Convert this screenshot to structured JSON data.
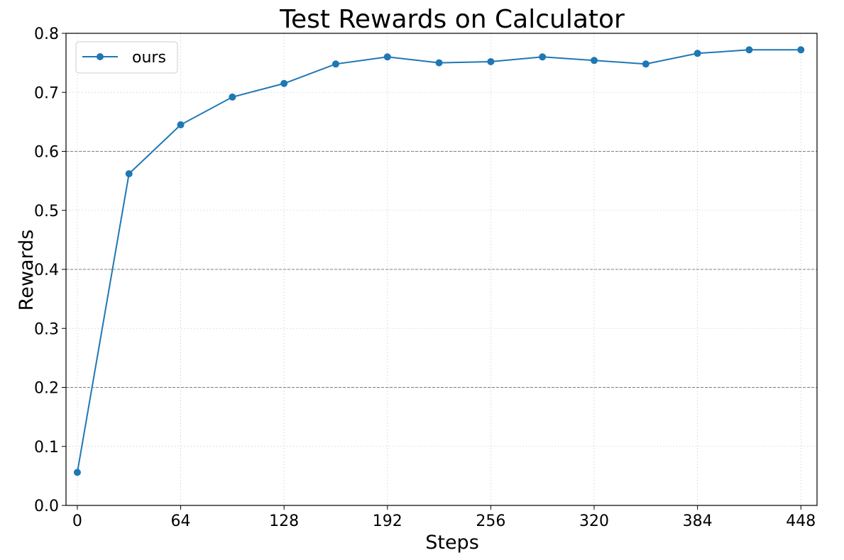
{
  "chart_data": {
    "type": "line",
    "title": "Test Rewards on Calculator",
    "xlabel": "Steps",
    "ylabel": "Rewards",
    "xlim": [
      -7,
      458
    ],
    "ylim": [
      0.0,
      0.8
    ],
    "xticks": [
      0,
      64,
      128,
      192,
      256,
      320,
      384,
      448
    ],
    "xtick_labels": [
      "0",
      "64",
      "128",
      "192",
      "256",
      "320",
      "384",
      "448"
    ],
    "yticks": [
      0.0,
      0.1,
      0.2,
      0.3,
      0.4,
      0.5,
      0.6,
      0.7,
      0.8
    ],
    "ytick_labels": [
      "0.0",
      "0.1",
      "0.2",
      "0.3",
      "0.4",
      "0.5",
      "0.6",
      "0.7",
      "0.8"
    ],
    "dashed_reference_lines": [
      0.2,
      0.4,
      0.6
    ],
    "grid": true,
    "legend_position": "top-left",
    "series": [
      {
        "name": "ours",
        "color": "#1f77b4",
        "marker": "circle",
        "x": [
          0,
          32,
          64,
          96,
          128,
          160,
          192,
          224,
          256,
          288,
          320,
          352,
          384,
          416,
          448
        ],
        "y": [
          0.056,
          0.562,
          0.645,
          0.692,
          0.715,
          0.748,
          0.76,
          0.75,
          0.752,
          0.76,
          0.754,
          0.748,
          0.766,
          0.772,
          0.772
        ]
      }
    ]
  }
}
